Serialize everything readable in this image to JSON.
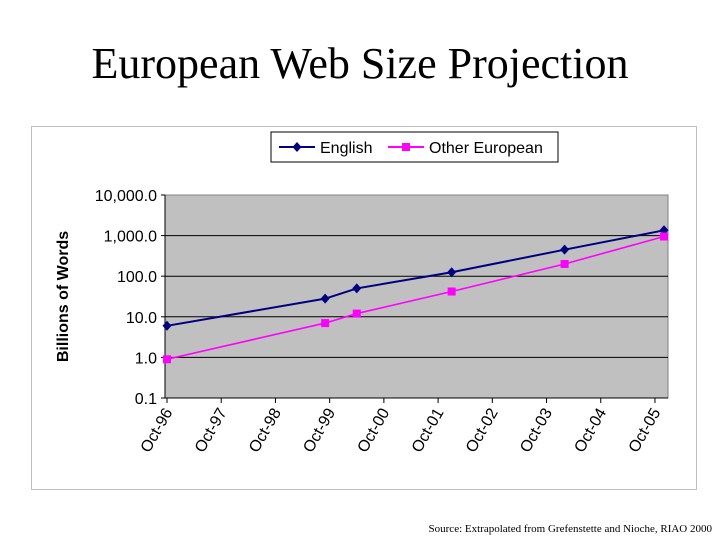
{
  "slide": {
    "title": "European Web Size Projection",
    "source": "Source: Extrapolated from Grefenstette and Nioche, RIAO 2000"
  },
  "chart_data": {
    "type": "line",
    "title": "",
    "xlabel": "",
    "ylabel": "Billions of Words",
    "yscale": "log",
    "ylim": [
      0.1,
      10000
    ],
    "y_ticks": [
      "10,000.0",
      "1,000.0",
      "100.0",
      "10.0",
      "1.0",
      "0.1"
    ],
    "y_tick_values": [
      10000,
      1000,
      100,
      10,
      1,
      0.1
    ],
    "x_ticks": [
      "Oct-96",
      "Oct-97",
      "Oct-98",
      "Oct-99",
      "Oct-00",
      "Oct-01",
      "Oct-02",
      "Oct-03",
      "Oct-04",
      "Oct-05"
    ],
    "grid": true,
    "plot_background": "#c0c0c0",
    "legend_position": "top",
    "series": [
      {
        "name": "English",
        "color": "#000080",
        "marker": "diamond",
        "points": [
          {
            "x": "Oct-96",
            "y": 6
          },
          {
            "x": "Sep-99",
            "y": 28
          },
          {
            "x": "Apr-00",
            "y": 50
          },
          {
            "x": "Jan-02",
            "y": 125
          },
          {
            "x": "Feb-04",
            "y": 450
          },
          {
            "x": "Dec-05",
            "y": 1350
          }
        ]
      },
      {
        "name": "Other European",
        "color": "#ff00ff",
        "marker": "square",
        "points": [
          {
            "x": "Oct-96",
            "y": 0.9
          },
          {
            "x": "Sep-99",
            "y": 7
          },
          {
            "x": "Apr-00",
            "y": 12
          },
          {
            "x": "Jan-02",
            "y": 42
          },
          {
            "x": "Feb-04",
            "y": 200
          },
          {
            "x": "Dec-05",
            "y": 950
          }
        ]
      }
    ]
  }
}
